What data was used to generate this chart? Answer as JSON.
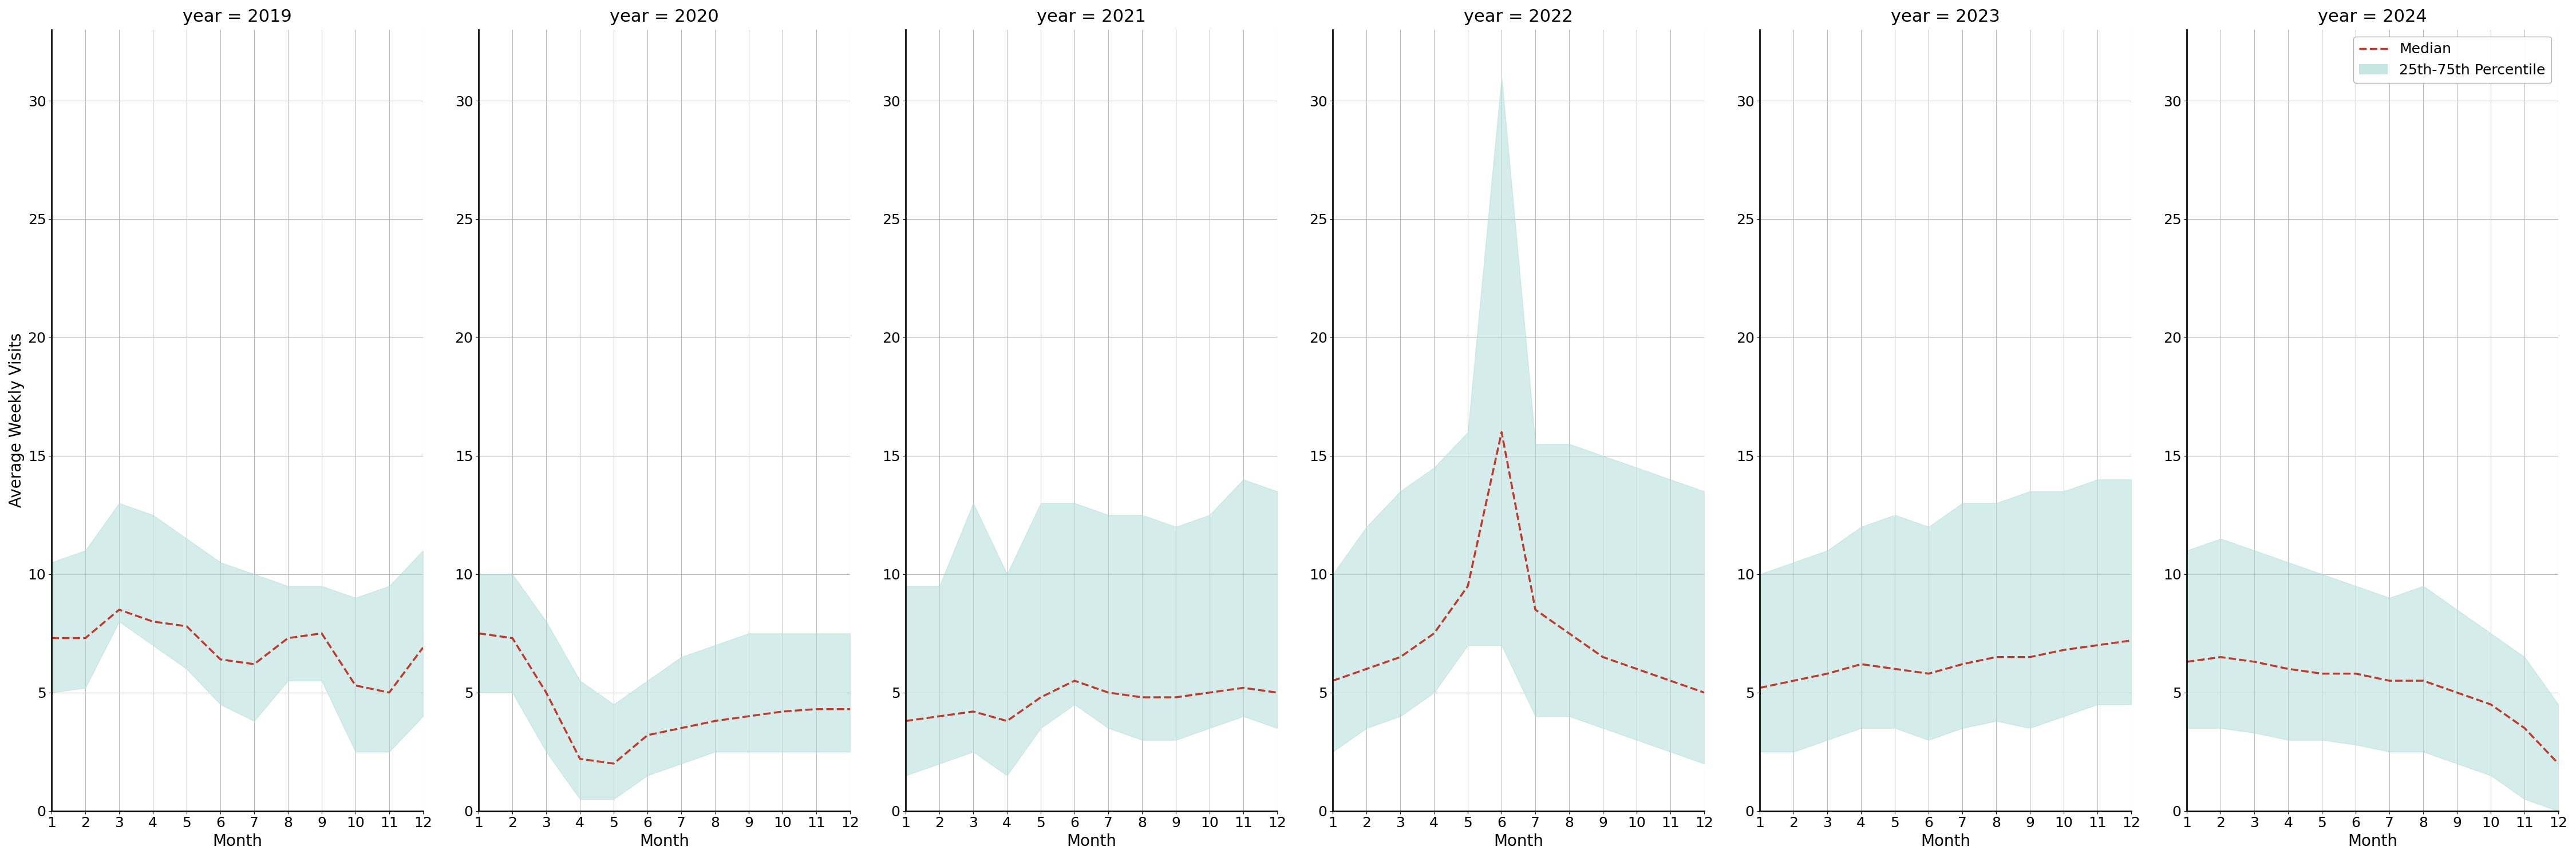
{
  "years": [
    2019,
    2020,
    2021,
    2022,
    2023,
    2024
  ],
  "months": [
    1,
    2,
    3,
    4,
    5,
    6,
    7,
    8,
    9,
    10,
    11,
    12
  ],
  "median": {
    "2019": [
      7.3,
      7.3,
      8.5,
      8.0,
      7.8,
      6.4,
      6.2,
      7.3,
      7.5,
      5.3,
      5.0,
      6.9
    ],
    "2020": [
      7.5,
      7.3,
      5.0,
      2.2,
      2.0,
      3.2,
      3.5,
      3.8,
      4.0,
      4.2,
      4.3,
      4.3
    ],
    "2021": [
      3.8,
      4.0,
      4.2,
      3.8,
      4.8,
      5.5,
      5.0,
      4.8,
      4.8,
      5.0,
      5.2,
      5.0
    ],
    "2022": [
      5.5,
      6.0,
      6.5,
      7.5,
      9.5,
      16.0,
      8.5,
      7.5,
      6.5,
      6.0,
      5.5,
      5.0
    ],
    "2023": [
      5.2,
      5.5,
      5.8,
      6.2,
      6.0,
      5.8,
      6.2,
      6.5,
      6.5,
      6.8,
      7.0,
      7.2
    ],
    "2024": [
      6.3,
      6.5,
      6.3,
      6.0,
      5.8,
      5.8,
      5.5,
      5.5,
      5.0,
      4.5,
      3.5,
      2.0
    ]
  },
  "p25": {
    "2019": [
      5.0,
      5.2,
      8.0,
      7.0,
      6.0,
      4.5,
      3.8,
      5.5,
      5.5,
      2.5,
      2.5,
      4.0
    ],
    "2020": [
      5.0,
      5.0,
      2.5,
      0.5,
      0.5,
      1.5,
      2.0,
      2.5,
      2.5,
      2.5,
      2.5,
      2.5
    ],
    "2021": [
      1.5,
      2.0,
      2.5,
      1.5,
      3.5,
      4.5,
      3.5,
      3.0,
      3.0,
      3.5,
      4.0,
      3.5
    ],
    "2022": [
      2.5,
      3.5,
      4.0,
      5.0,
      7.0,
      7.0,
      4.0,
      4.0,
      3.5,
      3.0,
      2.5,
      2.0
    ],
    "2023": [
      2.5,
      2.5,
      3.0,
      3.5,
      3.5,
      3.0,
      3.5,
      3.8,
      3.5,
      4.0,
      4.5,
      4.5
    ],
    "2024": [
      3.5,
      3.5,
      3.3,
      3.0,
      3.0,
      2.8,
      2.5,
      2.5,
      2.0,
      1.5,
      0.5,
      0.0
    ]
  },
  "p75": {
    "2019": [
      10.5,
      11.0,
      13.0,
      12.5,
      11.5,
      10.5,
      10.0,
      9.5,
      9.5,
      9.0,
      9.5,
      11.0
    ],
    "2020": [
      10.0,
      10.0,
      8.0,
      5.5,
      4.5,
      5.5,
      6.5,
      7.0,
      7.5,
      7.5,
      7.5,
      7.5
    ],
    "2021": [
      9.5,
      9.5,
      13.0,
      10.0,
      13.0,
      13.0,
      12.5,
      12.5,
      12.0,
      12.5,
      14.0,
      13.5
    ],
    "2022": [
      10.0,
      12.0,
      13.5,
      14.5,
      16.0,
      31.0,
      15.5,
      15.5,
      15.0,
      14.5,
      14.0,
      13.5
    ],
    "2023": [
      10.0,
      10.5,
      11.0,
      12.0,
      12.5,
      12.0,
      13.0,
      13.0,
      13.5,
      13.5,
      14.0,
      14.0
    ],
    "2024": [
      11.0,
      11.5,
      11.0,
      10.5,
      10.0,
      9.5,
      9.0,
      9.5,
      8.5,
      7.5,
      6.5,
      4.5
    ]
  },
  "fill_color": "#b2dfdb",
  "fill_alpha": 0.55,
  "line_color": "#c0392b",
  "line_style": "--",
  "line_width": 2.5,
  "ylabel": "Average Weekly Visits",
  "xlabel": "Month",
  "ylim": [
    0,
    33
  ],
  "yticks": [
    0,
    5,
    10,
    15,
    20,
    25,
    30
  ],
  "xticks": [
    1,
    2,
    3,
    4,
    5,
    6,
    7,
    8,
    9,
    10,
    11,
    12
  ],
  "grid_color": "#bbbbbb",
  "bg_color": "#ffffff",
  "title_fontsize": 22,
  "label_fontsize": 20,
  "tick_fontsize": 18,
  "legend_fontsize": 18,
  "legend_labels": [
    "Median",
    "25th-75th Percentile"
  ]
}
